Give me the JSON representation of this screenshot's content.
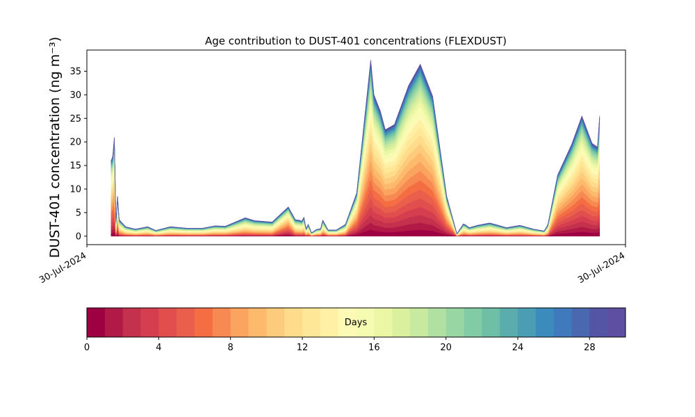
{
  "chart_data": {
    "type": "area",
    "stacked": true,
    "title": "Age contribution to DUST-401 concentrations (FLEXDUST)",
    "ylabel": "DUST-401 concentration (ng m⁻³)",
    "ylim": [
      -1.8,
      39.5
    ],
    "yticks": [
      0,
      5,
      10,
      15,
      20,
      25,
      30,
      35
    ],
    "xlim": [
      0,
      100
    ],
    "xtick_labels": [
      "30-Jul-2024",
      "30-Jul-2024"
    ],
    "x": [
      4.5,
      4.8,
      5.1,
      5.4,
      5.7,
      6.0,
      6.4,
      7.2,
      9.0,
      11.3,
      12.8,
      15.5,
      18.5,
      21.5,
      23.8,
      25.7,
      29.4,
      31.1,
      34.4,
      37.4,
      38.7,
      39.4,
      39.9,
      40.3,
      40.7,
      41.1,
      41.7,
      42.6,
      43.4,
      43.8,
      44.8,
      46.3,
      48.0,
      50.1,
      52.7,
      53.3,
      54.5,
      55.4,
      57.1,
      59.7,
      61.9,
      64.2,
      66.8,
      68.7,
      69.9,
      70.3,
      71.0,
      72.5,
      74.8,
      76.4,
      77.9,
      80.4,
      82.9,
      84.9,
      85.6,
      87.4,
      90.0,
      91.9,
      93.8,
      94.8,
      95.2
    ],
    "total": [
      16,
      17,
      21,
      3,
      8.5,
      3.5,
      3,
      2,
      1.5,
      2,
      1.2,
      2,
      1.7,
      1.7,
      2.2,
      2.1,
      3.9,
      3.3,
      3,
      6.2,
      3.5,
      3.4,
      3.2,
      4,
      1.6,
      2.5,
      0.7,
      1.4,
      1.6,
      3.4,
      1.3,
      1.3,
      2.5,
      9.2,
      37.4,
      30.0,
      26.5,
      22.6,
      23.7,
      31.9,
      36.5,
      29.7,
      8.5,
      0.5,
      2.6,
      2.4,
      1.8,
      2.3,
      2.8,
      2.3,
      1.8,
      2.3,
      1.5,
      1.1,
      2.5,
      13.0,
      19.5,
      25.5,
      19.7,
      18.9,
      25.5
    ],
    "series_days": [
      0,
      1,
      2,
      3,
      4,
      5,
      6,
      7,
      8,
      9,
      10,
      11,
      12,
      13,
      14,
      15,
      16,
      17,
      18,
      19,
      20,
      21,
      22,
      23,
      24,
      25,
      26,
      27,
      28,
      29
    ],
    "colormap": [
      "#9e0142",
      "#b11947",
      "#c4314c",
      "#d53e4f",
      "#e04e4e",
      "#ea5f4c",
      "#f46d43",
      "#f78a52",
      "#fba45f",
      "#fdb96c",
      "#fdcb7c",
      "#fedc8c",
      "#fee898",
      "#fff0a6",
      "#fdfab6",
      "#f6fbb2",
      "#ecf7a6",
      "#dbf09f",
      "#c7e9a0",
      "#b1e0a3",
      "#98d6a4",
      "#82cca5",
      "#6ebfa6",
      "#5aadac",
      "#4b9db4",
      "#3b8bbd",
      "#3f7abc",
      "#4968b0",
      "#5555a5",
      "#5e4fa2"
    ],
    "colorbar": {
      "label": "Days",
      "range": [
        0,
        30
      ],
      "ticks": [
        0,
        4,
        8,
        12,
        16,
        20,
        24,
        28
      ]
    }
  }
}
